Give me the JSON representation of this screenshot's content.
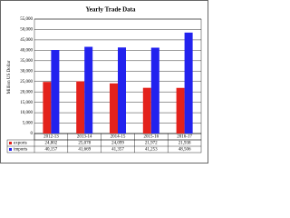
{
  "chart_data": {
    "type": "bar",
    "title": "Yearly Trade Data",
    "y_label": "Million US Dollar",
    "categories": [
      "2012-13",
      "2013-14",
      "2014-15",
      "2015-16",
      "2016-17"
    ],
    "series": [
      {
        "name": "exports",
        "color": "#e3221c",
        "values": [
          24802,
          25078,
          24099,
          21972,
          21938
        ],
        "value_labels": [
          "24,802",
          "25,078",
          "24,099",
          "21,972",
          "21,938"
        ]
      },
      {
        "name": "imports",
        "color": "#2222ee",
        "values": [
          40157,
          41669,
          41357,
          41253,
          48506
        ],
        "value_labels": [
          "40,157",
          "41,669",
          "41,357",
          "41,253",
          "48,506"
        ]
      }
    ],
    "ylim": [
      0,
      55000
    ],
    "yticks": [
      0,
      {
        "value": 5000,
        "label": "5,000"
      },
      {
        "value": 10000,
        "label": "10,000"
      },
      {
        "value": 15000,
        "label": "15,000"
      },
      {
        "value": 20000,
        "label": "20,000"
      },
      {
        "value": 25000,
        "label": "25,000"
      },
      {
        "value": 30000,
        "label": "30,000"
      },
      {
        "value": 35000,
        "label": "35,000"
      },
      {
        "value": 40000,
        "label": "40,000"
      },
      {
        "value": 45000,
        "label": "45,000"
      },
      {
        "value": 50000,
        "label": "50,000"
      },
      {
        "value": 55000,
        "label": "55,000"
      }
    ],
    "grid": true
  }
}
